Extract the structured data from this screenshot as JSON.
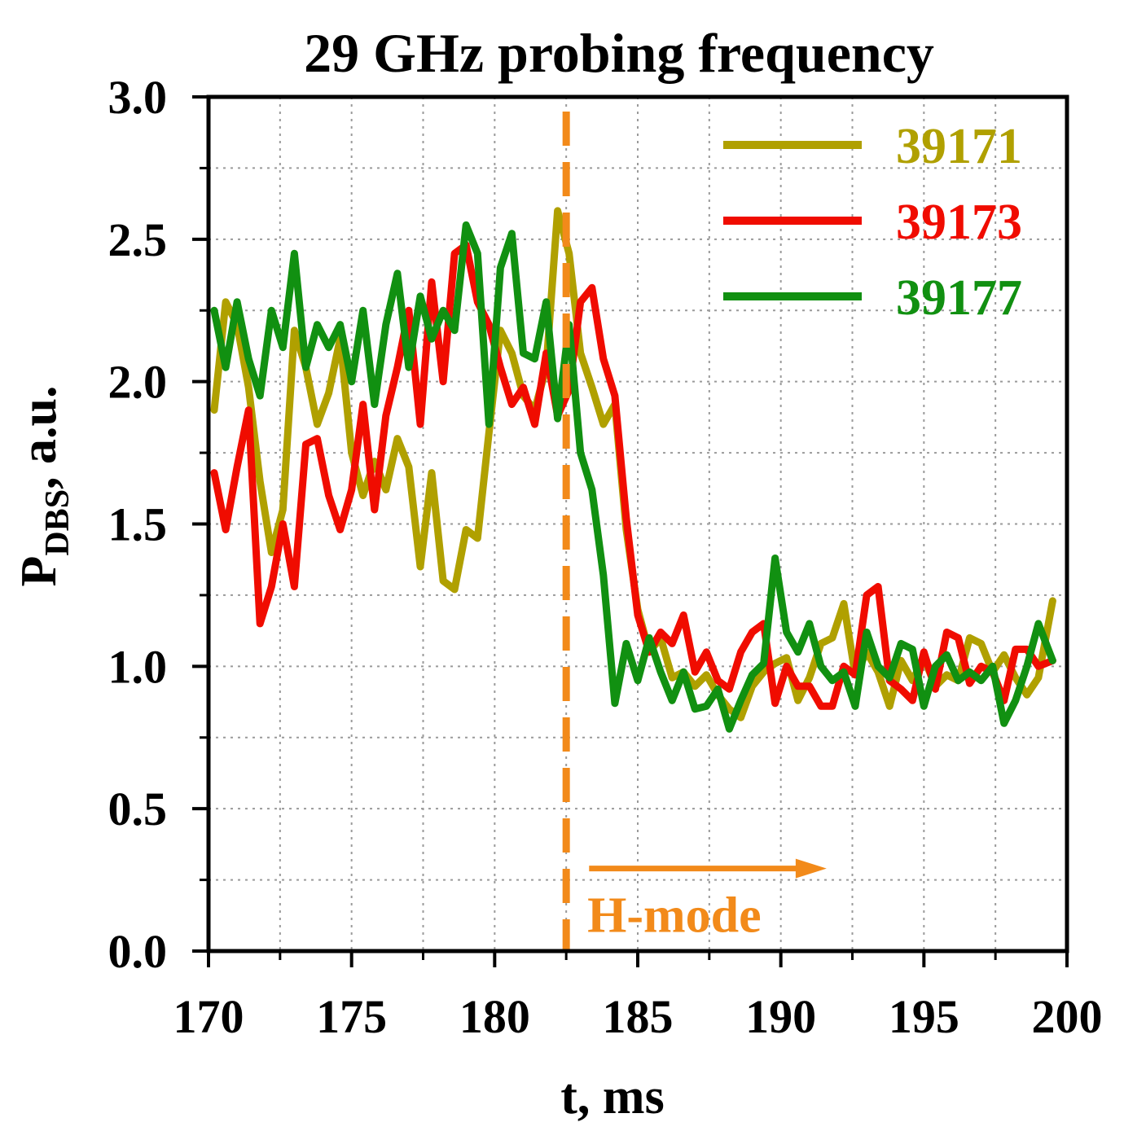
{
  "chart_data": {
    "type": "line",
    "title": "29 GHz probing frequency",
    "xlabel": "t, ms",
    "ylabel_main": "P",
    "ylabel_sub": "DBS",
    "ylabel_rest": ", a.u.",
    "xlim": [
      170,
      200
    ],
    "ylim": [
      0.0,
      3.0
    ],
    "x_ticks": [
      170,
      175,
      180,
      185,
      190,
      195,
      200
    ],
    "x_tick_labels": [
      "170",
      "175",
      "180",
      "185",
      "190",
      "195",
      "200"
    ],
    "y_ticks": [
      0.0,
      0.5,
      1.0,
      1.5,
      2.0,
      2.5,
      3.0
    ],
    "y_tick_labels": [
      "0.0",
      "0.5",
      "1.0",
      "1.5",
      "2.0",
      "2.5",
      "3.0"
    ],
    "grid": true,
    "legend_position": "top-right",
    "annotation": {
      "label": "H-mode",
      "x": 182.5,
      "arrow_from_x": 183.3,
      "arrow_to_x": 191.6,
      "arrow_y": 0.29,
      "color": "#f28a1a"
    },
    "x": [
      170.2,
      170.6,
      171.0,
      171.4,
      171.8,
      172.2,
      172.6,
      173.0,
      173.4,
      173.8,
      174.2,
      174.6,
      175.0,
      175.4,
      175.8,
      176.2,
      176.6,
      177.0,
      177.4,
      177.8,
      178.2,
      178.6,
      179.0,
      179.4,
      179.8,
      180.2,
      180.6,
      181.0,
      181.4,
      181.8,
      182.2,
      182.6,
      183.0,
      183.4,
      183.8,
      184.2,
      184.6,
      185.0,
      185.4,
      185.8,
      186.2,
      186.6,
      187.0,
      187.4,
      187.8,
      188.2,
      188.6,
      189.0,
      189.4,
      189.8,
      190.2,
      190.6,
      191.0,
      191.4,
      191.8,
      192.2,
      192.6,
      193.0,
      193.4,
      193.8,
      194.2,
      194.6,
      195.0,
      195.4,
      195.8,
      196.2,
      196.6,
      197.0,
      197.4,
      197.8,
      198.2,
      198.6,
      199.0,
      199.5
    ],
    "series": [
      {
        "name": "39171",
        "color": "#b0a000",
        "values": [
          1.9,
          2.28,
          2.2,
          1.98,
          1.65,
          1.4,
          1.55,
          2.18,
          2.05,
          1.85,
          1.96,
          2.15,
          1.75,
          1.6,
          1.72,
          1.62,
          1.8,
          1.7,
          1.35,
          1.68,
          1.3,
          1.27,
          1.48,
          1.45,
          1.82,
          2.18,
          2.1,
          1.95,
          1.9,
          2.05,
          2.6,
          2.45,
          2.1,
          1.98,
          1.85,
          1.92,
          1.48,
          1.2,
          1.05,
          1.1,
          0.96,
          0.98,
          0.93,
          0.97,
          0.9,
          0.85,
          0.82,
          0.93,
          0.98,
          1.01,
          1.03,
          0.88,
          0.96,
          1.08,
          1.1,
          1.22,
          0.97,
          1.05,
          0.98,
          0.86,
          1.02,
          0.95,
          1.03,
          0.93,
          0.97,
          0.95,
          1.1,
          1.08,
          0.98,
          1.04,
          0.96,
          0.9,
          0.96,
          1.23
        ]
      },
      {
        "name": "39173",
        "color": "#f00c00",
        "values": [
          1.68,
          1.48,
          1.7,
          1.9,
          1.15,
          1.28,
          1.5,
          1.28,
          1.78,
          1.8,
          1.6,
          1.48,
          1.62,
          1.92,
          1.55,
          1.88,
          2.05,
          2.25,
          1.85,
          2.35,
          2.0,
          2.45,
          2.48,
          2.28,
          2.2,
          2.05,
          1.92,
          1.98,
          1.85,
          2.1,
          1.88,
          1.97,
          2.28,
          2.33,
          2.08,
          1.95,
          1.52,
          1.18,
          1.05,
          1.12,
          1.08,
          1.18,
          0.98,
          1.05,
          0.95,
          0.92,
          1.05,
          1.12,
          1.15,
          0.87,
          1.0,
          0.93,
          0.93,
          0.86,
          0.86,
          1.0,
          0.97,
          1.25,
          1.28,
          0.95,
          0.92,
          0.88,
          1.05,
          0.92,
          1.12,
          1.1,
          0.94,
          1.0,
          0.98,
          0.88,
          1.06,
          1.06,
          1.0,
          1.02
        ]
      },
      {
        "name": "39177",
        "color": "#119011",
        "values": [
          2.25,
          2.05,
          2.28,
          2.08,
          1.95,
          2.25,
          2.12,
          2.45,
          2.05,
          2.2,
          2.12,
          2.2,
          2.0,
          2.25,
          1.92,
          2.2,
          2.38,
          2.05,
          2.3,
          2.15,
          2.25,
          2.18,
          2.55,
          2.45,
          1.85,
          2.4,
          2.52,
          2.1,
          2.08,
          2.28,
          1.87,
          2.2,
          1.75,
          1.62,
          1.32,
          0.87,
          1.08,
          0.95,
          1.1,
          0.98,
          0.88,
          0.98,
          0.85,
          0.86,
          0.92,
          0.78,
          0.88,
          0.97,
          1.01,
          1.38,
          1.12,
          1.05,
          1.15,
          1.0,
          0.95,
          0.98,
          0.86,
          1.12,
          1.0,
          0.96,
          1.08,
          1.06,
          0.86,
          1.0,
          1.04,
          0.95,
          0.98,
          0.95,
          1.0,
          0.8,
          0.88,
          1.0,
          1.15,
          1.02
        ]
      }
    ]
  }
}
